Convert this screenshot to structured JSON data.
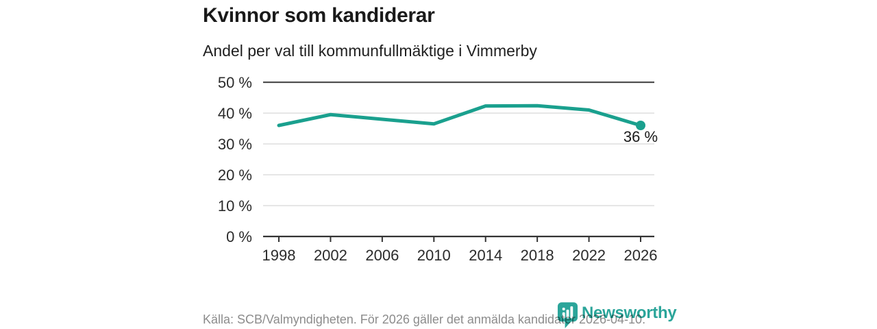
{
  "chart_data": {
    "type": "line",
    "title": "Kvinnor som kandiderar",
    "subtitle": "Andel per val till kommunfullmäktige i Vimmerby",
    "categories": [
      "1998",
      "2002",
      "2006",
      "2010",
      "2014",
      "2018",
      "2022",
      "2026"
    ],
    "values": [
      36,
      39.5,
      38,
      36.5,
      42.3,
      42.4,
      41,
      36
    ],
    "unit": "%",
    "ylim": [
      0,
      50
    ],
    "yticks": [
      0,
      10,
      20,
      30,
      40,
      50
    ],
    "ytick_label_suffix": " %",
    "xlabel": "",
    "ylabel": "",
    "grid": "horizontal",
    "legend": "none",
    "line_color": "#1aa08e",
    "end_point": {
      "category": "2026",
      "value": 36,
      "label": "36 %"
    }
  },
  "footer": {
    "source": "Källa: SCB/Valmyndigheten. För 2026 gäller det anmälda kandidater 2026-04-10.",
    "brand": "Newsworthy",
    "brand_color": "#2ba59a",
    "logo_icon": "bar-chart-pin-icon"
  },
  "colors": {
    "background": "#ffffff",
    "axis": "#333333",
    "top_gridline": "#4f4f4f",
    "gridline": "#dedede",
    "tick_label": "#2b2b2b",
    "annotation": "#1a1a1a"
  }
}
